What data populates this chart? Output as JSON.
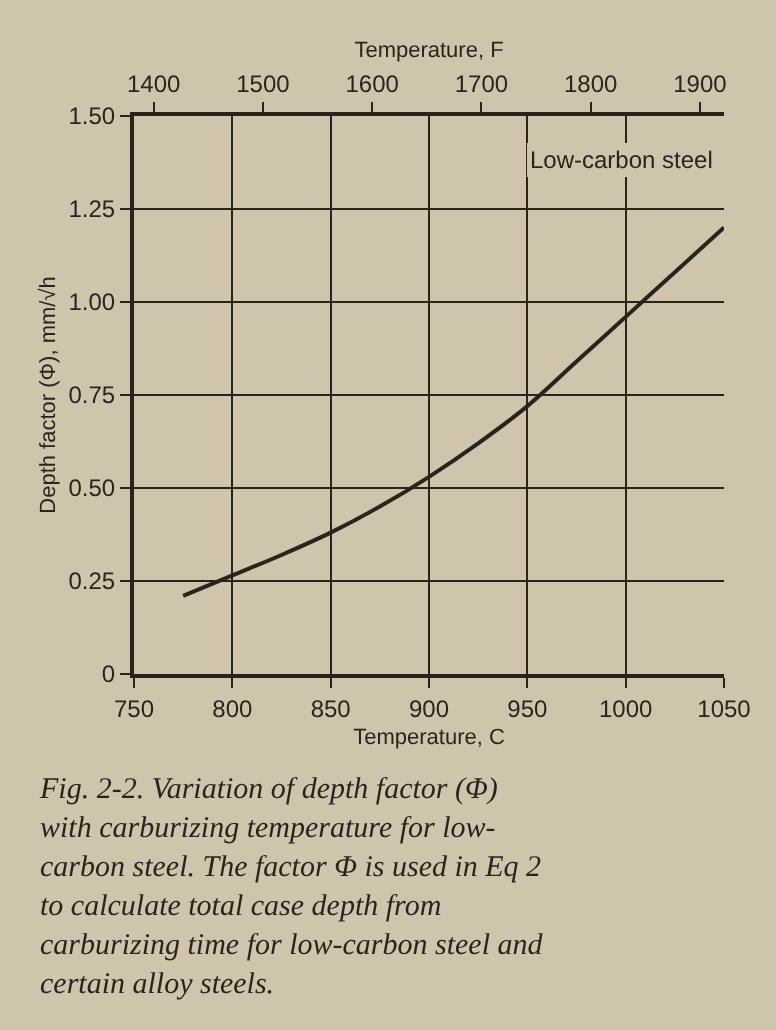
{
  "chart_data": {
    "type": "line",
    "xlabel": "Temperature, C",
    "x2label": "Temperature, F",
    "ylabel": "Depth factor (Φ), mm/√h",
    "x": [
      775,
      800,
      825,
      850,
      875,
      900,
      925,
      950,
      975,
      1000,
      1025,
      1050
    ],
    "series": [
      {
        "color": "#2a241c",
        "values": [
          0.21,
          0.265,
          0.32,
          0.38,
          0.45,
          0.53,
          0.62,
          0.72,
          0.84,
          0.96,
          1.08,
          1.2
        ]
      }
    ],
    "xlim": [
      750,
      1050
    ],
    "xticks": [
      750,
      800,
      850,
      900,
      950,
      1000,
      1050
    ],
    "x2lim": [
      1382,
      1922
    ],
    "x2ticks": [
      1400,
      1500,
      1600,
      1700,
      1800,
      1900
    ],
    "ylim": [
      0,
      1.5
    ],
    "yticks": [
      0,
      {
        "value": 0.25,
        "label": "0.25"
      },
      {
        "value": 0.5,
        "label": "0.50"
      },
      {
        "value": 0.75,
        "label": "0.75"
      },
      {
        "value": 1.0,
        "label": "1.00"
      },
      {
        "value": 1.25,
        "label": "1.25"
      },
      {
        "value": 1.5,
        "label": "1.50"
      }
    ],
    "grid": true,
    "marker": "none",
    "line_style": "solid",
    "annotations": [
      "Low-carbon steel",
      "Fig. 2-2. Variation of depth factor (Φ) with carburizing temperature for low-carbon steel. The factor Φ is used in Eq 2 to calculate total case depth from carburizing time for low-carbon steel and certain alloy steels."
    ]
  }
}
